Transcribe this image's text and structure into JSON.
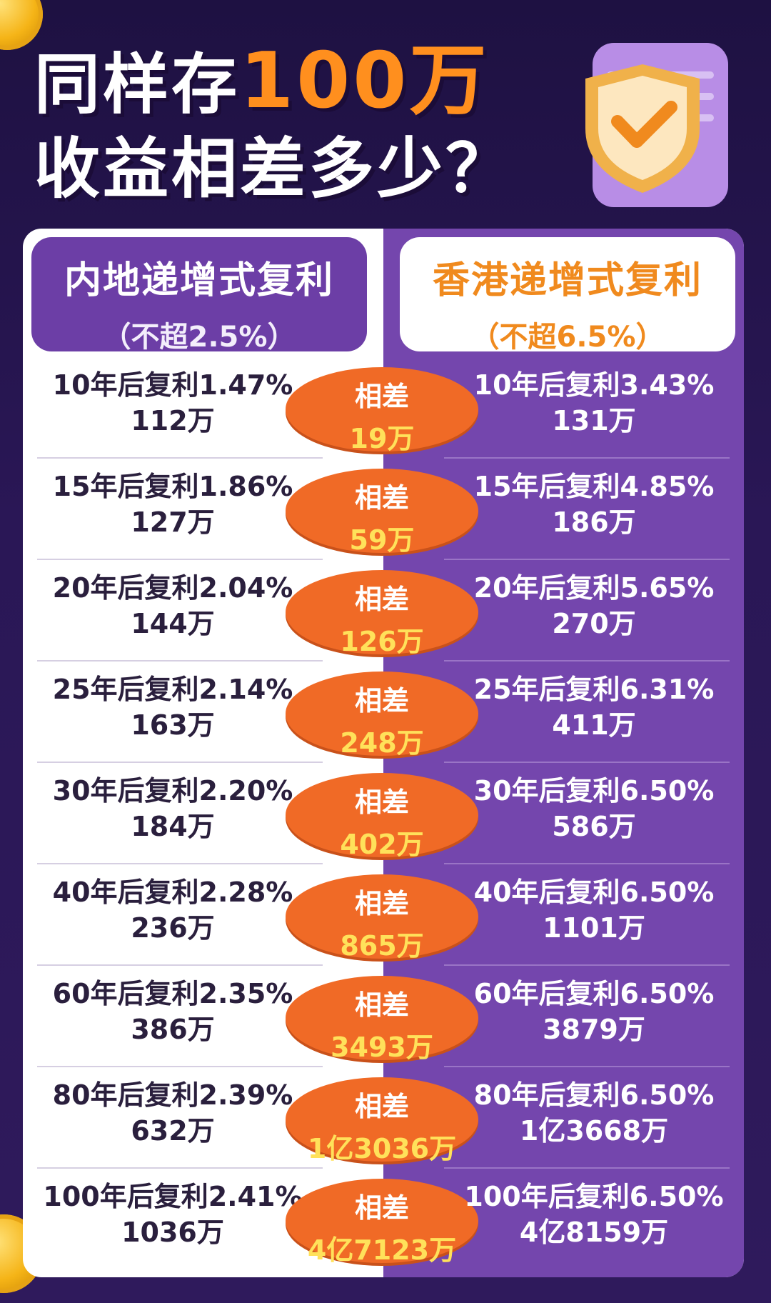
{
  "title": {
    "line1_a": "同样存",
    "line1_highlight": "100万",
    "line2": "收益相差多少？"
  },
  "colors": {
    "orange": "#f06a26",
    "purple": "#7446ad",
    "yellow": "#ffe15a"
  },
  "headers": {
    "left": {
      "title": "内地递增式复利",
      "sub": "（不超2.5%）"
    },
    "right": {
      "title": "香港递增式复利",
      "sub": "（不超6.5%）"
    }
  },
  "diff_label": "相差",
  "rows": [
    {
      "left_line": "10年后复利1.47%",
      "left_value": "112万",
      "diff": "19万",
      "right_line": "10年后复利3.43%",
      "right_value": "131万"
    },
    {
      "left_line": "15年后复利1.86%",
      "left_value": "127万",
      "diff": "59万",
      "right_line": "15年后复利4.85%",
      "right_value": "186万"
    },
    {
      "left_line": "20年后复利2.04%",
      "left_value": "144万",
      "diff": "126万",
      "right_line": "20年后复利5.65%",
      "right_value": "270万"
    },
    {
      "left_line": "25年后复利2.14%",
      "left_value": "163万",
      "diff": "248万",
      "right_line": "25年后复利6.31%",
      "right_value": "411万"
    },
    {
      "left_line": "30年后复利2.20%",
      "left_value": "184万",
      "diff": "402万",
      "right_line": "30年后复利6.50%",
      "right_value": "586万"
    },
    {
      "left_line": "40年后复利2.28%",
      "left_value": "236万",
      "diff": "865万",
      "right_line": "40年后复利6.50%",
      "right_value": "1101万"
    },
    {
      "left_line": "60年后复利2.35%",
      "left_value": "386万",
      "diff": "3493万",
      "right_line": "60年后复利6.50%",
      "right_value": "3879万"
    },
    {
      "left_line": "80年后复利2.39%",
      "left_value": "632万",
      "diff": "1亿3036万",
      "right_line": "80年后复利6.50%",
      "right_value": "1亿3668万"
    },
    {
      "left_line": "100年后复利2.41%",
      "left_value": "1036万",
      "diff": "4亿7123万",
      "right_line": "100年后复利6.50%",
      "right_value": "4亿8159万"
    }
  ]
}
